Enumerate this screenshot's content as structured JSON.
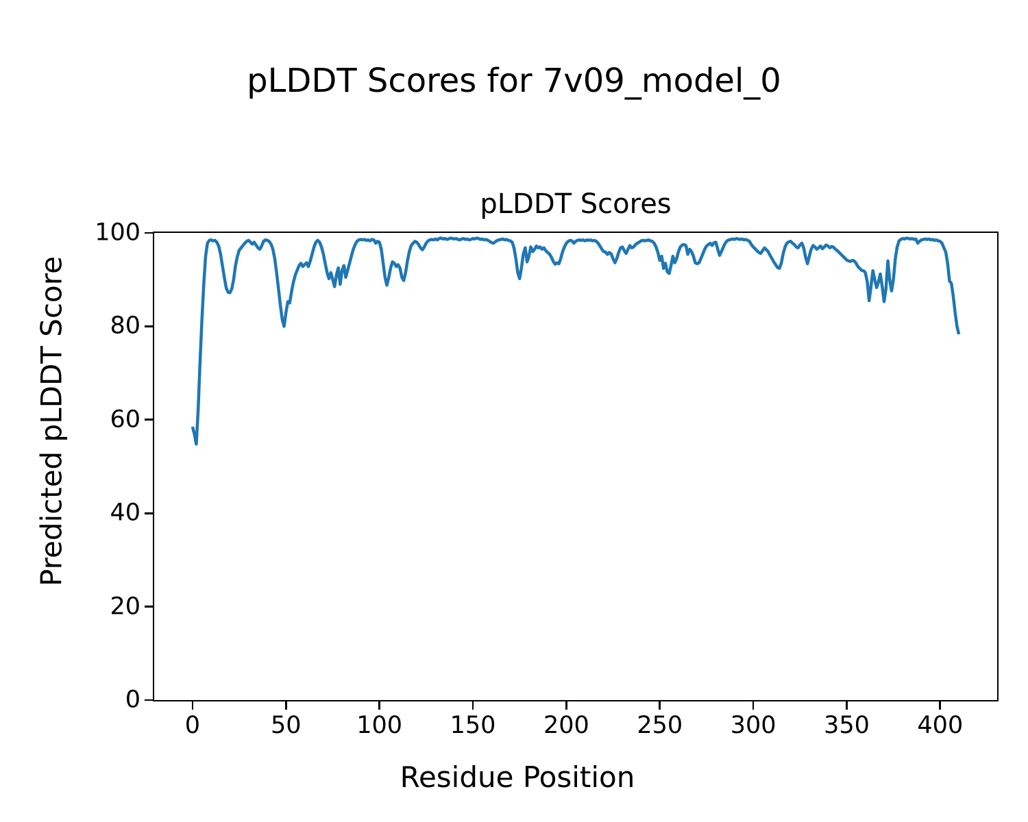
{
  "figure": {
    "suptitle": "pLDDT Scores for 7v09_model_0",
    "background": "#ffffff"
  },
  "chart_data": {
    "type": "line",
    "title": "pLDDT Scores",
    "xlabel": "Residue Position",
    "ylabel": "Predicted pLDDT Score",
    "xlim": [
      -20.5,
      430.5
    ],
    "ylim": [
      0,
      100
    ],
    "x_ticks": [
      0,
      50,
      100,
      150,
      200,
      250,
      300,
      350,
      400
    ],
    "y_ticks": [
      0,
      20,
      40,
      60,
      80,
      100
    ],
    "grid": false,
    "legend_position": "none",
    "line_color": "#1f77b4",
    "line_width": 4.5,
    "axis_color": "#000000",
    "series": [
      {
        "name": "pLDDT",
        "x_start": 0,
        "x_step": 1,
        "values": [
          58.5,
          57.0,
          54.8,
          62.0,
          72.0,
          81.0,
          89.0,
          95.0,
          97.8,
          98.4,
          98.5,
          98.3,
          98.4,
          98.0,
          97.2,
          95.5,
          93.0,
          90.5,
          88.3,
          87.3,
          87.2,
          88.0,
          90.0,
          93.0,
          95.0,
          96.3,
          96.8,
          97.3,
          97.8,
          98.2,
          98.4,
          98.0,
          97.6,
          98.0,
          97.4,
          96.8,
          96.5,
          97.2,
          98.2,
          98.5,
          98.4,
          98.2,
          97.6,
          96.5,
          94.5,
          91.5,
          88.0,
          84.5,
          81.5,
          80.0,
          83.0,
          85.3,
          85.0,
          87.5,
          89.5,
          91.0,
          92.0,
          93.0,
          93.5,
          92.8,
          93.2,
          93.6,
          92.8,
          94.0,
          95.5,
          97.0,
          98.0,
          98.4,
          98.0,
          97.0,
          95.5,
          93.5,
          91.5,
          90.2,
          91.5,
          90.0,
          88.5,
          91.0,
          92.5,
          89.0,
          92.0,
          93.0,
          90.5,
          92.0,
          93.5,
          95.0,
          96.5,
          97.5,
          98.2,
          98.5,
          98.6,
          98.5,
          98.6,
          98.4,
          98.5,
          98.3,
          98.6,
          98.5,
          97.8,
          98.2,
          98.0,
          96.5,
          93.5,
          90.5,
          88.8,
          90.5,
          92.5,
          93.8,
          93.5,
          92.8,
          93.2,
          92.5,
          90.5,
          89.8,
          91.5,
          94.0,
          96.0,
          97.3,
          97.8,
          98.2,
          98.0,
          97.5,
          96.8,
          96.4,
          97.0,
          97.8,
          98.3,
          98.5,
          98.6,
          98.5,
          98.7,
          98.5,
          98.8,
          98.9,
          98.7,
          98.8,
          98.6,
          98.7,
          98.9,
          98.8,
          98.7,
          98.8,
          98.6,
          98.5,
          98.7,
          98.8,
          98.6,
          98.7,
          98.5,
          98.6,
          98.8,
          98.7,
          98.9,
          98.8,
          98.6,
          98.7,
          98.5,
          98.6,
          98.4,
          98.2,
          97.9,
          97.8,
          98.1,
          98.4,
          98.5,
          98.6,
          98.7,
          98.5,
          98.6,
          98.4,
          98.3,
          98.0,
          96.8,
          94.5,
          91.5,
          90.2,
          92.5,
          95.5,
          96.8,
          93.8,
          95.0,
          97.0,
          96.0,
          96.5,
          97.2,
          96.8,
          97.0,
          96.5,
          96.8,
          96.2,
          95.8,
          95.5,
          94.8,
          93.9,
          93.3,
          93.6,
          93.4,
          94.5,
          96.0,
          97.0,
          97.8,
          98.2,
          98.4,
          98.3,
          97.8,
          98.2,
          98.4,
          98.5,
          98.4,
          98.5,
          98.3,
          98.5,
          98.4,
          98.5,
          98.3,
          98.4,
          98.2,
          97.8,
          97.2,
          96.5,
          96.0,
          95.9,
          95.4,
          95.8,
          95.5,
          94.5,
          93.6,
          94.5,
          95.8,
          96.8,
          97.0,
          96.2,
          95.6,
          96.5,
          97.3,
          96.8,
          97.0,
          97.5,
          97.8,
          98.0,
          98.3,
          98.4,
          98.3,
          98.4,
          98.5,
          98.3,
          98.2,
          97.8,
          97.0,
          95.8,
          94.1,
          95.0,
          92.4,
          93.5,
          91.7,
          91.3,
          93.0,
          95.0,
          93.6,
          94.5,
          96.0,
          97.0,
          97.4,
          97.5,
          97.3,
          95.4,
          96.5,
          96.0,
          95.0,
          93.6,
          93.4,
          93.6,
          94.5,
          95.5,
          96.5,
          97.2,
          97.5,
          97.8,
          97.3,
          97.9,
          98.0,
          96.5,
          95.2,
          96.0,
          97.0,
          97.8,
          98.3,
          98.5,
          98.6,
          98.7,
          98.6,
          98.8,
          98.7,
          98.6,
          98.7,
          98.5,
          98.6,
          98.4,
          98.2,
          97.5,
          97.0,
          96.6,
          96.2,
          95.8,
          95.6,
          96.2,
          96.8,
          96.4,
          96.0,
          95.2,
          94.5,
          93.8,
          93.2,
          92.6,
          92.4,
          93.5,
          95.5,
          97.0,
          97.8,
          98.1,
          98.2,
          97.8,
          97.5,
          97.0,
          96.8,
          97.4,
          97.8,
          96.8,
          94.8,
          93.4,
          95.0,
          96.5,
          97.3,
          97.0,
          96.5,
          96.8,
          97.2,
          96.6,
          97.0,
          97.4,
          97.2,
          96.8,
          97.1,
          96.9,
          96.5,
          96.2,
          95.8,
          95.4,
          95.0,
          94.6,
          94.2,
          94.0,
          93.9,
          94.1,
          94.0,
          93.5,
          92.8,
          92.4,
          92.0,
          91.9,
          91.5,
          89.5,
          85.5,
          88.5,
          91.9,
          90.0,
          88.3,
          89.5,
          91.2,
          88.5,
          85.3,
          88.0,
          94.0,
          90.0,
          87.6,
          90.0,
          94.5,
          97.0,
          98.3,
          98.6,
          98.8,
          98.7,
          98.9,
          98.8,
          98.7,
          98.8,
          98.6,
          98.7,
          97.8,
          98.2,
          98.5,
          98.6,
          98.7,
          98.6,
          98.7,
          98.5,
          98.6,
          98.4,
          98.5,
          98.3,
          98.2,
          97.8,
          96.8,
          95.9,
          93.5,
          89.7,
          89.2,
          86.5,
          83.0,
          80.0,
          78.3
        ]
      }
    ]
  }
}
